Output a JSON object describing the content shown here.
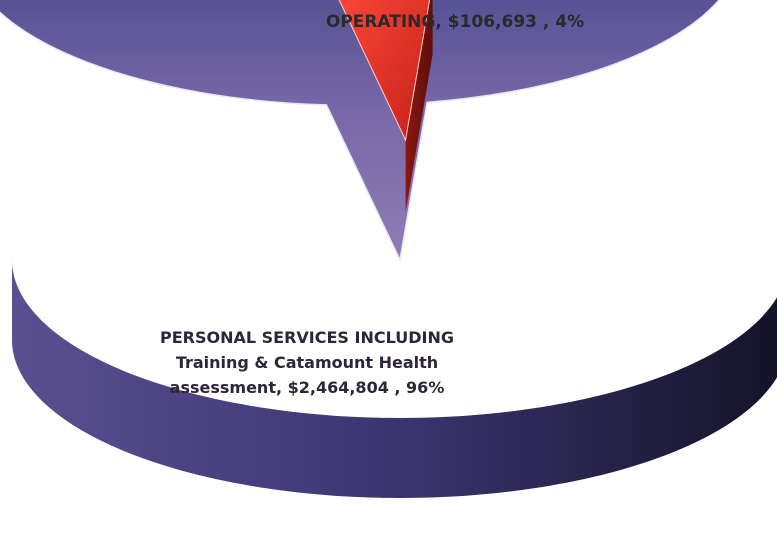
{
  "chart_data": {
    "type": "pie",
    "style": "3d-exploded",
    "slices": [
      {
        "label_lines": [
          "PERSONAL SERVICES INCLUDING",
          "Training & Catamount Health",
          "assessment, $2,464,804 , 96%"
        ],
        "category": "PERSONAL SERVICES INCLUDING Training & Catamount Health assessment",
        "value": 2464804,
        "percent": 96,
        "color": "#4f4c8c"
      },
      {
        "label_lines": [
          "OPERATING, $106,693 , 4%"
        ],
        "category": "OPERATING",
        "value": 106693,
        "percent": 4,
        "color": "#e0362c"
      }
    ]
  }
}
